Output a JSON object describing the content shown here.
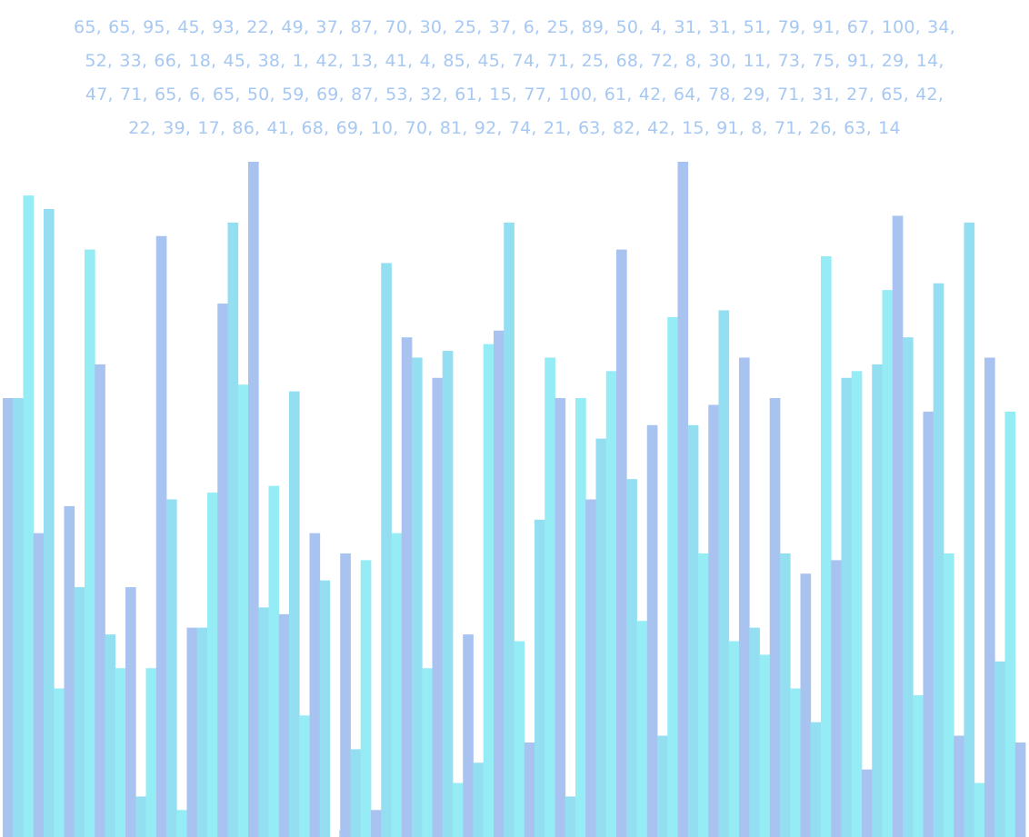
{
  "values_text": [
    "65, 65, 95, 45, 93, 22, 49, 37, 87, 70, 30, 25, 37, 6, 25, 89, 50, 4, 31, 31, 51, 79, 91, 67, 100, 34,",
    "52, 33, 66, 18, 45, 38, 1, 42, 13, 41, 4, 85, 45, 74, 71, 25, 68, 72, 8, 30, 11, 73, 75, 91, 29, 14,",
    "47, 71, 65, 6, 65, 50, 59, 69, 87, 53, 32, 61, 15, 77, 100, 61, 42, 64, 78, 29, 71, 31, 27, 65, 42,",
    "22, 39, 17, 86, 41, 68, 69, 10, 70, 81, 92, 74, 21, 63, 82, 42, 15, 91, 8, 71, 26, 63, 14"
  ],
  "chart_data": {
    "type": "bar",
    "values": [
      65,
      65,
      95,
      45,
      93,
      22,
      49,
      37,
      87,
      70,
      30,
      25,
      37,
      6,
      25,
      89,
      50,
      4,
      31,
      31,
      51,
      79,
      91,
      67,
      100,
      34,
      52,
      33,
      66,
      18,
      45,
      38,
      1,
      42,
      13,
      41,
      4,
      85,
      45,
      74,
      71,
      25,
      68,
      72,
      8,
      30,
      11,
      73,
      75,
      91,
      29,
      14,
      47,
      71,
      65,
      6,
      65,
      50,
      59,
      69,
      87,
      53,
      32,
      61,
      15,
      77,
      100,
      61,
      42,
      64,
      78,
      29,
      71,
      31,
      27,
      65,
      42,
      22,
      39,
      17,
      86,
      41,
      68,
      69,
      10,
      70,
      81,
      92,
      74,
      21,
      63,
      82,
      42,
      15,
      91,
      8,
      71,
      26,
      63,
      14
    ],
    "ylim": [
      0,
      100
    ],
    "grid": false,
    "colors": [
      "#a9c3f0",
      "#94def2",
      "#95ecf5"
    ]
  }
}
